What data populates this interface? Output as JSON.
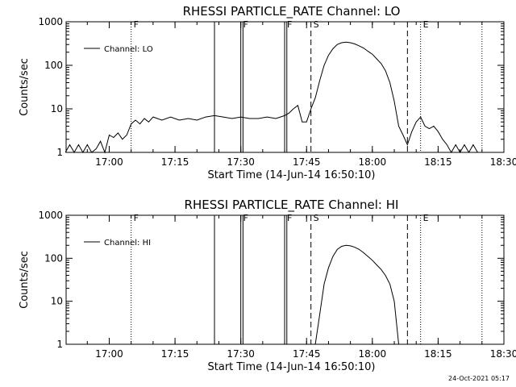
{
  "chart_data": [
    {
      "type": "line",
      "title": "RHESSI PARTICLE_RATE Channel: LO",
      "xlabel": "Start Time (14-Jun-14 16:50:10)",
      "ylabel": "Counts/sec",
      "y_scale": "log",
      "ylim": [
        1,
        1000
      ],
      "xlim": [
        "16:50:10",
        "18:30:00"
      ],
      "x_ticks": [
        "17:00",
        "17:15",
        "17:30",
        "17:45",
        "18:00",
        "18:15",
        "18:30"
      ],
      "y_ticks": [
        "1",
        "10",
        "100",
        "1000"
      ],
      "legend": {
        "position": "top-left",
        "entries": [
          "Channel: LO"
        ]
      },
      "flag_labels": [
        {
          "text": "F",
          "time": "17:05"
        },
        {
          "text": "F",
          "time": "17:30"
        },
        {
          "text": "F",
          "time": "17:40"
        },
        {
          "text": "S",
          "time": "17:46"
        },
        {
          "text": "E",
          "time": "18:11"
        }
      ],
      "markers": [
        {
          "time": "17:05",
          "style": "dotted"
        },
        {
          "time": "17:24",
          "style": "solid"
        },
        {
          "time": "17:30",
          "style": "solid"
        },
        {
          "time": "17:30.5",
          "style": "solid"
        },
        {
          "time": "17:40",
          "style": "solid"
        },
        {
          "time": "17:40.5",
          "style": "solid"
        },
        {
          "time": "17:46",
          "style": "dashed"
        },
        {
          "time": "18:08",
          "style": "dashed"
        },
        {
          "time": "18:11",
          "style": "dotted"
        },
        {
          "time": "18:25",
          "style": "dotted"
        }
      ],
      "series": [
        {
          "name": "Channel: LO",
          "points": [
            [
              "16:50",
              1.0
            ],
            [
              "16:51",
              1.5
            ],
            [
              "16:52",
              1.0
            ],
            [
              "16:53",
              1.5
            ],
            [
              "16:54",
              1.0
            ],
            [
              "16:55",
              1.5
            ],
            [
              "16:56",
              1.0
            ],
            [
              "16:57",
              1.2
            ],
            [
              "16:58",
              1.8
            ],
            [
              "16:59",
              1.0
            ],
            [
              "17:00",
              2.5
            ],
            [
              "17:01",
              2.2
            ],
            [
              "17:02",
              2.8
            ],
            [
              "17:03",
              2.0
            ],
            [
              "17:04",
              2.5
            ],
            [
              "17:05",
              4.5
            ],
            [
              "17:06",
              5.5
            ],
            [
              "17:07",
              4.5
            ],
            [
              "17:08",
              6.0
            ],
            [
              "17:09",
              5.0
            ],
            [
              "17:10",
              6.5
            ],
            [
              "17:12",
              5.5
            ],
            [
              "17:14",
              6.5
            ],
            [
              "17:16",
              5.5
            ],
            [
              "17:18",
              6.0
            ],
            [
              "17:20",
              5.5
            ],
            [
              "17:22",
              6.5
            ],
            [
              "17:24",
              7.0
            ],
            [
              "17:26",
              6.5
            ],
            [
              "17:28",
              6.0
            ],
            [
              "17:30",
              6.5
            ],
            [
              "17:32",
              6.0
            ],
            [
              "17:34",
              6.0
            ],
            [
              "17:36",
              6.5
            ],
            [
              "17:38",
              6.0
            ],
            [
              "17:40",
              7.0
            ],
            [
              "17:41",
              8.0
            ],
            [
              "17:42",
              10.0
            ],
            [
              "17:43",
              12.0
            ],
            [
              "17:44",
              5.0
            ],
            [
              "17:45",
              5.0
            ],
            [
              "17:46",
              10.0
            ],
            [
              "17:47",
              18.0
            ],
            [
              "17:48",
              45.0
            ],
            [
              "17:49",
              100.0
            ],
            [
              "17:50",
              170.0
            ],
            [
              "17:51",
              240.0
            ],
            [
              "17:52",
              300.0
            ],
            [
              "17:53",
              330.0
            ],
            [
              "17:54",
              340.0
            ],
            [
              "17:55",
              330.0
            ],
            [
              "17:56",
              310.0
            ],
            [
              "17:57",
              280.0
            ],
            [
              "17:58",
              250.0
            ],
            [
              "17:59",
              210.0
            ],
            [
              "18:00",
              180.0
            ],
            [
              "18:01",
              140.0
            ],
            [
              "18:02",
              110.0
            ],
            [
              "18:03",
              75.0
            ],
            [
              "18:04",
              40.0
            ],
            [
              "18:05",
              15.0
            ],
            [
              "18:06",
              4.0
            ],
            [
              "18:07",
              2.5
            ],
            [
              "18:08",
              1.5
            ],
            [
              "18:09",
              3.0
            ],
            [
              "18:10",
              5.0
            ],
            [
              "18:11",
              6.5
            ],
            [
              "18:12",
              4.0
            ],
            [
              "18:13",
              3.5
            ],
            [
              "18:14",
              4.0
            ],
            [
              "18:15",
              3.0
            ],
            [
              "18:16",
              2.0
            ],
            [
              "18:17",
              1.5
            ],
            [
              "18:18",
              1.0
            ],
            [
              "18:19",
              1.5
            ],
            [
              "18:20",
              1.0
            ],
            [
              "18:21",
              1.5
            ],
            [
              "18:22",
              1.0
            ],
            [
              "18:23",
              1.5
            ],
            [
              "18:24",
              1.0
            ]
          ]
        }
      ]
    },
    {
      "type": "line",
      "title": "RHESSI PARTICLE_RATE Channel: HI",
      "xlabel": "Start Time (14-Jun-14 16:50:10)",
      "ylabel": "Counts/sec",
      "y_scale": "log",
      "ylim": [
        1,
        1000
      ],
      "xlim": [
        "16:50:10",
        "18:30:00"
      ],
      "x_ticks": [
        "17:00",
        "17:15",
        "17:30",
        "17:45",
        "18:00",
        "18:15",
        "18:30"
      ],
      "y_ticks": [
        "1",
        "10",
        "100",
        "1000"
      ],
      "legend": {
        "position": "top-left",
        "entries": [
          "Channel: HI"
        ]
      },
      "flag_labels": [
        {
          "text": "F",
          "time": "17:05"
        },
        {
          "text": "F",
          "time": "17:30"
        },
        {
          "text": "F",
          "time": "17:40"
        },
        {
          "text": "S",
          "time": "17:46"
        },
        {
          "text": "E",
          "time": "18:11"
        }
      ],
      "markers": [
        {
          "time": "17:05",
          "style": "dotted"
        },
        {
          "time": "17:24",
          "style": "solid"
        },
        {
          "time": "17:30",
          "style": "solid"
        },
        {
          "time": "17:30.5",
          "style": "solid"
        },
        {
          "time": "17:40",
          "style": "solid"
        },
        {
          "time": "17:40.5",
          "style": "solid"
        },
        {
          "time": "17:46",
          "style": "dashed"
        },
        {
          "time": "18:08",
          "style": "dashed"
        },
        {
          "time": "18:11",
          "style": "dotted"
        },
        {
          "time": "18:25",
          "style": "dotted"
        }
      ],
      "series": [
        {
          "name": "Channel: HI",
          "points": [
            [
              "17:47",
              1.0
            ],
            [
              "17:48",
              5.0
            ],
            [
              "17:49",
              25.0
            ],
            [
              "17:50",
              60.0
            ],
            [
              "17:51",
              110.0
            ],
            [
              "17:52",
              160.0
            ],
            [
              "17:53",
              190.0
            ],
            [
              "17:54",
              200.0
            ],
            [
              "17:55",
              195.0
            ],
            [
              "17:56",
              180.0
            ],
            [
              "17:57",
              160.0
            ],
            [
              "17:58",
              135.0
            ],
            [
              "17:59",
              110.0
            ],
            [
              "18:00",
              90.0
            ],
            [
              "18:01",
              70.0
            ],
            [
              "18:02",
              55.0
            ],
            [
              "18:03",
              40.0
            ],
            [
              "18:04",
              25.0
            ],
            [
              "18:05",
              10.0
            ],
            [
              "18:06",
              1.0
            ]
          ]
        }
      ]
    }
  ],
  "footer": {
    "timestamp": "24-Oct-2021 05:17"
  }
}
